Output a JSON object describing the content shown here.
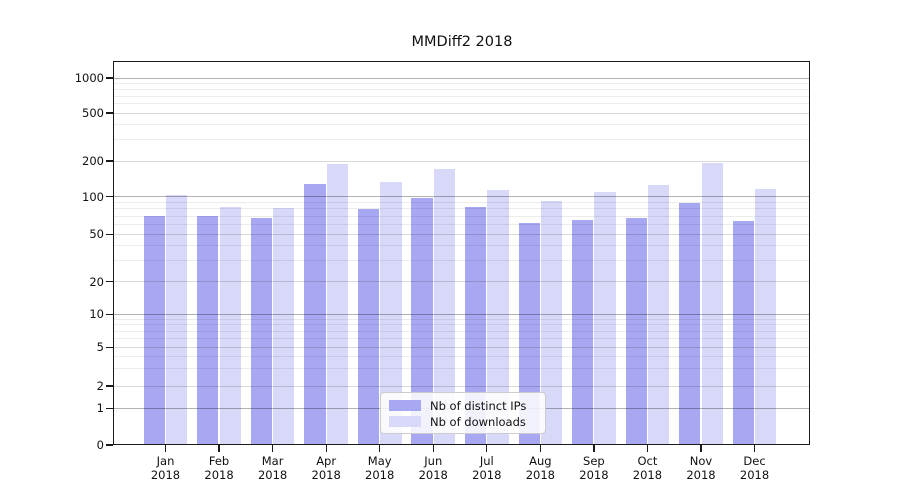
{
  "title": "MMDiff2 2018",
  "chart_data": {
    "type": "bar",
    "title": "MMDiff2 2018",
    "categories": [
      "Jan",
      "Feb",
      "Mar",
      "Apr",
      "May",
      "Jun",
      "Jul",
      "Aug",
      "Sep",
      "Oct",
      "Nov",
      "Dec"
    ],
    "year_label": "2018",
    "series": [
      {
        "name": "Nb of distinct IPs",
        "color": "#a8a8f2",
        "values": [
          70,
          70,
          67,
          127,
          80,
          98,
          82,
          62,
          65,
          68,
          89,
          64
        ]
      },
      {
        "name": "Nb of downloads",
        "color": "#d8d8f9",
        "values": [
          103,
          82,
          81,
          190,
          133,
          171,
          113,
          93,
          110,
          125,
          192,
          116
        ]
      }
    ],
    "yticks": [
      0,
      1,
      2,
      5,
      10,
      20,
      50,
      100,
      200,
      500,
      1000
    ],
    "yscale": "symlog",
    "ylim": [
      0,
      1000
    ],
    "grid": true,
    "legend_position": "lower-center"
  },
  "legend": {
    "items": [
      {
        "label": "Nb of distinct IPs",
        "color": "#a8a8f2"
      },
      {
        "label": "Nb of downloads",
        "color": "#d8d8f9"
      }
    ]
  }
}
